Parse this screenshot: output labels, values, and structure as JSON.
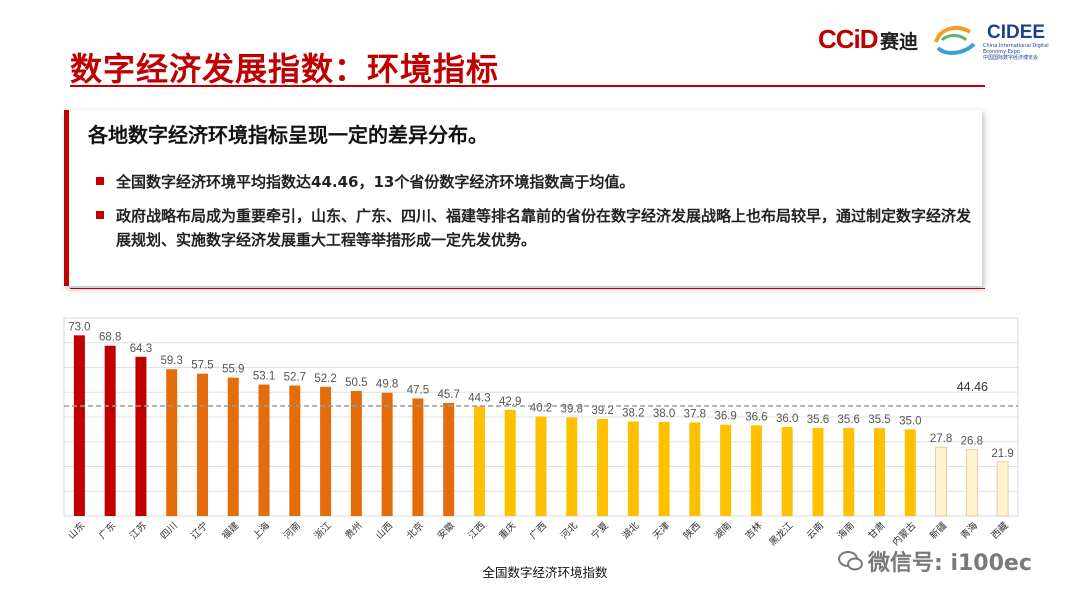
{
  "title": "数字经济发展指数：环境指标",
  "logos": {
    "ccid": "CCiD",
    "ccid_cn": "赛迪",
    "cidee": "CIDEE",
    "cidee_sub_en": "China International Digital Economy Expo",
    "cidee_sub_cn": "中国国际数字经济博览会"
  },
  "headline": "各地数字经济环境指标呈现一定的差异分布。",
  "bullets": [
    "全国数字经济环境平均指数达44.46，13个省份数字经济环境指数高于均值。",
    "政府战略布局成为重要牵引，山东、广东、四川、福建等排名靠前的省份在数字经济发展战略上也布局较早，通过制定数字经济发展规划、实施数字经济发展重大工程等举措形成一定先发优势。"
  ],
  "watermark": "微信号: i100ec",
  "chart_data": {
    "type": "bar",
    "categories": [
      "山东",
      "广东",
      "江苏",
      "四川",
      "辽宁",
      "福建",
      "上海",
      "河南",
      "浙江",
      "贵州",
      "山西",
      "北京",
      "安徽",
      "江西",
      "重庆",
      "广西",
      "河北",
      "宁夏",
      "湖北",
      "天津",
      "陕西",
      "湖南",
      "吉林",
      "黑龙江",
      "云南",
      "海南",
      "甘肃",
      "内蒙古",
      "新疆",
      "青海",
      "西藏"
    ],
    "values": [
      73.0,
      68.8,
      64.3,
      59.3,
      57.5,
      55.9,
      53.1,
      52.7,
      52.2,
      50.5,
      49.8,
      47.5,
      45.7,
      44.3,
      42.9,
      40.2,
      39.8,
      39.2,
      38.2,
      38.0,
      37.8,
      36.9,
      36.6,
      36.0,
      35.6,
      35.6,
      35.5,
      35.0,
      27.8,
      26.8,
      21.9
    ],
    "value_labels": [
      "73.0",
      "68.8",
      "64.3",
      "59.3",
      "57.5",
      "55.9",
      "53.1",
      "52.7",
      "52.2",
      "50.5",
      "49.8",
      "47.5",
      "45.7",
      "44.3",
      "42.9",
      "40.2",
      "39.8",
      "39.2",
      "38.2",
      "38.0",
      "37.8",
      "36.9",
      "36.6",
      "36.0",
      "35.6",
      "35.6",
      "35.5",
      "35.0",
      "27.8",
      "26.8",
      "21.9"
    ],
    "reference_line": {
      "value": 44.46,
      "label": "44.46"
    },
    "xlabel": "全国数字经济环境指数",
    "ylim": [
      0,
      80
    ],
    "grid": true,
    "colors": {
      "dark_red": "#c00000",
      "orange": "#e46c0a",
      "yellow": "#ffc000",
      "cream": "#fff2cc"
    },
    "color_groups": [
      [
        0,
        2,
        "dark_red"
      ],
      [
        3,
        12,
        "orange"
      ],
      [
        13,
        27,
        "yellow"
      ],
      [
        28,
        30,
        "cream"
      ]
    ]
  }
}
